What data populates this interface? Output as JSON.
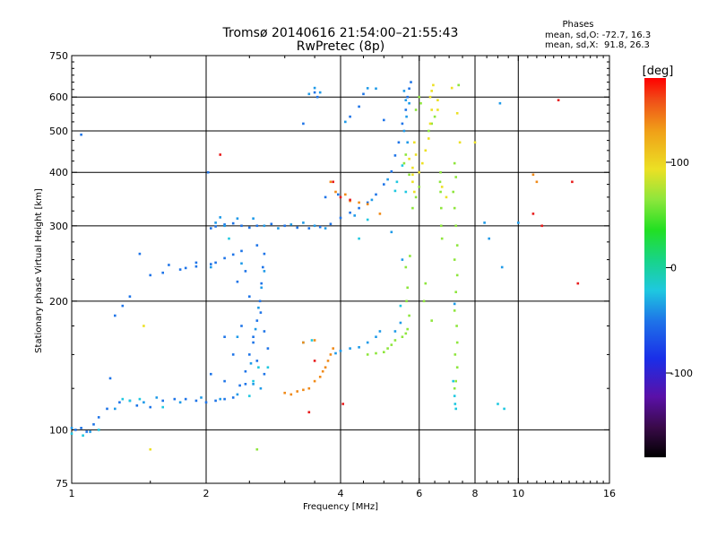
{
  "chart_data": {
    "type": "scatter",
    "title": "Tromsø 20140616 21:54:00–21:55:43",
    "subtitle": "RwPretec (8p)",
    "xlabel": "Frequency [MHz]",
    "ylabel": "Stationary phase Virtual Height [km]",
    "x_scale": "log",
    "y_scale": "log",
    "xlim": [
      1,
      16
    ],
    "ylim": [
      75,
      750
    ],
    "xticks": [
      1,
      2,
      4,
      6,
      8,
      10,
      16
    ],
    "xtick_labels": [
      "1",
      "2",
      "4",
      "6",
      "8",
      "10",
      "16"
    ],
    "yticks": [
      75,
      100,
      200,
      300,
      400,
      500,
      600,
      750
    ],
    "ytick_labels": [
      "75",
      "100",
      "200",
      "300",
      "400",
      "500",
      "600",
      "750"
    ],
    "grid": true,
    "phase_box": {
      "heading": "Phases",
      "line1": "mean, sd,O: -72.7, 16.3",
      "line2": "mean, sd,X:  91.8, 26.3"
    },
    "colorbar": {
      "label": "[deg]",
      "range": [
        -180,
        180
      ],
      "ticks": [
        100,
        0,
        -100
      ],
      "tick_labels": [
        "100",
        "0",
        "-100"
      ],
      "colormap": "rainbow: black(-180) > purple > blue > cyan > green > yellow > orange > red(180)"
    },
    "series": [
      {
        "phase": -100,
        "color": "#1e74e8",
        "points": [
          [
            1.02,
            100
          ],
          [
            1.05,
            101
          ],
          [
            1.08,
            99
          ],
          [
            1.12,
            103
          ],
          [
            1.15,
            107
          ],
          [
            1.2,
            112
          ],
          [
            1.28,
            116
          ],
          [
            1.35,
            117
          ],
          [
            1.4,
            114
          ],
          [
            1.5,
            113
          ],
          [
            1.6,
            117
          ],
          [
            1.7,
            118
          ],
          [
            1.8,
            118
          ],
          [
            1.9,
            117
          ],
          [
            2.0,
            116
          ],
          [
            2.1,
            117
          ],
          [
            2.2,
            118
          ],
          [
            2.3,
            119
          ],
          [
            2.38,
            127
          ],
          [
            2.45,
            137
          ],
          [
            2.5,
            150
          ],
          [
            2.55,
            165
          ],
          [
            2.6,
            180
          ],
          [
            2.64,
            200
          ],
          [
            2.66,
            220
          ],
          [
            2.68,
            240
          ],
          [
            2.7,
            258
          ],
          [
            2.6,
            270
          ],
          [
            2.4,
            262
          ],
          [
            2.3,
            257
          ],
          [
            2.2,
            252
          ],
          [
            2.1,
            246
          ],
          [
            2.05,
            244
          ],
          [
            1.9,
            241
          ],
          [
            1.8,
            239
          ],
          [
            1.6,
            233
          ],
          [
            1.5,
            230
          ],
          [
            1.65,
            243
          ],
          [
            1.75,
            237
          ],
          [
            1.35,
            205
          ],
          [
            1.3,
            195
          ],
          [
            1.25,
            185
          ],
          [
            2.05,
            296
          ],
          [
            2.1,
            299
          ],
          [
            2.2,
            302
          ],
          [
            2.3,
            304
          ],
          [
            2.4,
            300
          ],
          [
            2.5,
            297
          ],
          [
            2.6,
            300
          ],
          [
            2.8,
            303
          ],
          [
            3.0,
            300
          ],
          [
            3.2,
            297
          ],
          [
            3.4,
            296
          ],
          [
            3.6,
            298
          ],
          [
            3.8,
            303
          ],
          [
            4.0,
            313
          ],
          [
            4.2,
            322
          ],
          [
            4.4,
            330
          ],
          [
            4.6,
            340
          ],
          [
            4.8,
            355
          ],
          [
            5.0,
            375
          ],
          [
            5.2,
            402
          ],
          [
            5.3,
            438
          ],
          [
            5.4,
            470
          ],
          [
            5.5,
            520
          ],
          [
            5.6,
            560
          ],
          [
            5.65,
            600
          ],
          [
            5.7,
            628
          ],
          [
            5.75,
            650
          ],
          [
            3.5,
            615
          ],
          [
            3.55,
            600
          ],
          [
            3.3,
            520
          ],
          [
            4.2,
            540
          ],
          [
            4.4,
            570
          ],
          [
            5.0,
            530
          ],
          [
            4.5,
            610
          ],
          [
            2.02,
            400
          ],
          [
            1.05,
            490
          ],
          [
            2.45,
            235
          ],
          [
            2.35,
            222
          ],
          [
            2.5,
            205
          ],
          [
            2.65,
            188
          ],
          [
            2.4,
            175
          ],
          [
            2.55,
            160
          ],
          [
            2.3,
            150
          ],
          [
            2.6,
            145
          ],
          [
            2.7,
            135
          ],
          [
            2.45,
            128
          ],
          [
            2.2,
            130
          ],
          [
            2.05,
            135
          ],
          [
            2.7,
            170
          ],
          [
            2.2,
            165
          ],
          [
            2.75,
            155
          ],
          [
            1.9,
            246
          ],
          [
            1.42,
            258
          ],
          [
            3.95,
            355
          ],
          [
            3.7,
            350
          ],
          [
            1.22,
            132
          ]
        ]
      },
      {
        "phase": -80,
        "color": "#1e9ae8",
        "points": [
          [
            1.0,
            101
          ],
          [
            1.1,
            99
          ],
          [
            1.25,
            112
          ],
          [
            1.45,
            116
          ],
          [
            1.55,
            119
          ],
          [
            1.75,
            116
          ],
          [
            1.95,
            119
          ],
          [
            2.15,
            118
          ],
          [
            2.35,
            121
          ],
          [
            2.52,
            143
          ],
          [
            2.58,
            172
          ],
          [
            2.62,
            193
          ],
          [
            2.66,
            215
          ],
          [
            2.7,
            235
          ],
          [
            2.4,
            245
          ],
          [
            2.2,
            300
          ],
          [
            2.15,
            314
          ],
          [
            2.1,
            305
          ],
          [
            2.35,
            312
          ],
          [
            2.55,
            312
          ],
          [
            2.7,
            300
          ],
          [
            2.9,
            296
          ],
          [
            3.1,
            302
          ],
          [
            3.3,
            305
          ],
          [
            3.5,
            300
          ],
          [
            3.7,
            296
          ],
          [
            4.3,
            317
          ],
          [
            4.7,
            345
          ],
          [
            5.1,
            385
          ],
          [
            4.6,
            160
          ],
          [
            4.4,
            156
          ],
          [
            4.2,
            155
          ],
          [
            4.0,
            153
          ],
          [
            3.9,
            151
          ],
          [
            4.8,
            165
          ],
          [
            5.3,
            170
          ],
          [
            5.45,
            178
          ],
          [
            5.6,
            590
          ],
          [
            5.7,
            580
          ],
          [
            5.62,
            540
          ],
          [
            5.55,
            500
          ],
          [
            4.1,
            525
          ],
          [
            3.4,
            610
          ],
          [
            3.6,
            615
          ],
          [
            3.5,
            630
          ],
          [
            4.6,
            629
          ],
          [
            4.8,
            628
          ],
          [
            5.55,
            620
          ],
          [
            5.65,
            470
          ],
          [
            5.2,
            290
          ],
          [
            5.5,
            250
          ],
          [
            2.05,
            240
          ],
          [
            2.35,
            165
          ],
          [
            2.65,
            125
          ],
          [
            2.55,
            128
          ],
          [
            4.9,
            170
          ],
          [
            9.1,
            580
          ],
          [
            9.2,
            240
          ],
          [
            10.0,
            305
          ],
          [
            8.6,
            280
          ],
          [
            8.4,
            305
          ],
          [
            7.2,
            197
          ]
        ]
      },
      {
        "phase": -60,
        "color": "#1ec8e0",
        "points": [
          [
            1.0,
            98
          ],
          [
            1.06,
            97
          ],
          [
            1.15,
            100
          ],
          [
            1.3,
            118
          ],
          [
            1.42,
            118
          ],
          [
            2.55,
            130
          ],
          [
            2.62,
            140
          ],
          [
            2.5,
            120
          ],
          [
            2.75,
            140
          ],
          [
            3.3,
            160
          ],
          [
            3.45,
            162
          ],
          [
            5.3,
            362
          ],
          [
            5.35,
            380
          ],
          [
            5.6,
            360
          ],
          [
            4.4,
            280
          ],
          [
            4.6,
            310
          ],
          [
            5.45,
            195
          ],
          [
            1.35,
            117
          ],
          [
            7.15,
            130
          ],
          [
            7.2,
            120
          ],
          [
            7.22,
            115
          ],
          [
            7.25,
            112
          ],
          [
            9.0,
            115
          ],
          [
            9.3,
            112
          ],
          [
            1.6,
            113
          ],
          [
            2.25,
            280
          ],
          [
            5.5,
            415
          ]
        ]
      },
      {
        "phase": 30,
        "color": "#8ee63c",
        "points": [
          [
            4.6,
            150
          ],
          [
            4.8,
            151
          ],
          [
            5.0,
            152
          ],
          [
            5.1,
            155
          ],
          [
            5.2,
            158
          ],
          [
            5.3,
            162
          ],
          [
            5.5,
            165
          ],
          [
            5.6,
            168
          ],
          [
            5.65,
            172
          ],
          [
            5.7,
            185
          ],
          [
            5.62,
            200
          ],
          [
            5.65,
            215
          ],
          [
            5.6,
            240
          ],
          [
            5.72,
            255
          ],
          [
            5.8,
            330
          ],
          [
            5.9,
            350
          ],
          [
            6.0,
            370
          ],
          [
            6.3,
            500
          ],
          [
            6.4,
            520
          ],
          [
            6.5,
            540
          ],
          [
            7.2,
            420
          ],
          [
            7.25,
            390
          ],
          [
            7.15,
            360
          ],
          [
            7.2,
            330
          ],
          [
            7.25,
            300
          ],
          [
            7.3,
            270
          ],
          [
            7.2,
            250
          ],
          [
            7.3,
            230
          ],
          [
            7.25,
            210
          ],
          [
            7.2,
            190
          ],
          [
            7.28,
            175
          ],
          [
            7.3,
            160
          ],
          [
            7.22,
            150
          ],
          [
            7.3,
            140
          ],
          [
            7.25,
            130
          ],
          [
            7.2,
            125
          ],
          [
            7.35,
            640
          ],
          [
            6.7,
            400
          ],
          [
            6.68,
            380
          ],
          [
            6.7,
            360
          ],
          [
            6.72,
            330
          ],
          [
            6.72,
            300
          ],
          [
            6.75,
            280
          ],
          [
            5.55,
            420
          ],
          [
            5.6,
            440
          ],
          [
            5.7,
            395
          ],
          [
            2.6,
            90
          ],
          [
            6.2,
            220
          ],
          [
            6.15,
            200
          ],
          [
            6.4,
            180
          ],
          [
            6.0,
            600
          ],
          [
            6.05,
            580
          ],
          [
            5.9,
            560
          ]
        ]
      },
      {
        "phase": 100,
        "color": "#ece024",
        "points": [
          [
            6.0,
            400
          ],
          [
            6.1,
            420
          ],
          [
            6.2,
            450
          ],
          [
            6.3,
            480
          ],
          [
            6.35,
            520
          ],
          [
            6.4,
            560
          ],
          [
            6.35,
            600
          ],
          [
            6.4,
            620
          ],
          [
            6.45,
            640
          ],
          [
            5.8,
            380
          ],
          [
            5.85,
            360
          ],
          [
            5.8,
            410
          ],
          [
            5.9,
            440
          ],
          [
            5.85,
            470
          ],
          [
            5.7,
            430
          ],
          [
            5.8,
            395
          ],
          [
            6.6,
            560
          ],
          [
            6.6,
            590
          ],
          [
            7.4,
            470
          ],
          [
            7.3,
            550
          ],
          [
            6.9,
            350
          ],
          [
            6.75,
            370
          ],
          [
            1.5,
            90
          ],
          [
            1.45,
            175
          ],
          [
            7.1,
            630
          ],
          [
            8.0,
            470
          ]
        ]
      },
      {
        "phase": 140,
        "color": "#f08a18",
        "points": [
          [
            3.0,
            122
          ],
          [
            3.1,
            121
          ],
          [
            3.2,
            123
          ],
          [
            3.3,
            124
          ],
          [
            3.4,
            125
          ],
          [
            3.5,
            130
          ],
          [
            3.6,
            133
          ],
          [
            3.65,
            137
          ],
          [
            3.7,
            140
          ],
          [
            3.75,
            145
          ],
          [
            3.8,
            150
          ],
          [
            3.85,
            155
          ],
          [
            3.3,
            160
          ],
          [
            3.5,
            162
          ],
          [
            3.9,
            360
          ],
          [
            4.1,
            355
          ],
          [
            4.2,
            343
          ],
          [
            4.4,
            340
          ],
          [
            4.6,
            337
          ],
          [
            4.9,
            320
          ],
          [
            10.8,
            395
          ],
          [
            11.0,
            380
          ],
          [
            3.8,
            380
          ]
        ]
      },
      {
        "phase": 170,
        "color": "#e81c1c",
        "points": [
          [
            3.85,
            380
          ],
          [
            4.0,
            350
          ],
          [
            4.2,
            345
          ],
          [
            10.8,
            320
          ],
          [
            11.3,
            300
          ],
          [
            12.3,
            590
          ],
          [
            13.2,
            380
          ],
          [
            13.6,
            220
          ],
          [
            2.15,
            440
          ],
          [
            4.05,
            115
          ],
          [
            3.4,
            110
          ],
          [
            3.5,
            145
          ]
        ]
      }
    ]
  }
}
